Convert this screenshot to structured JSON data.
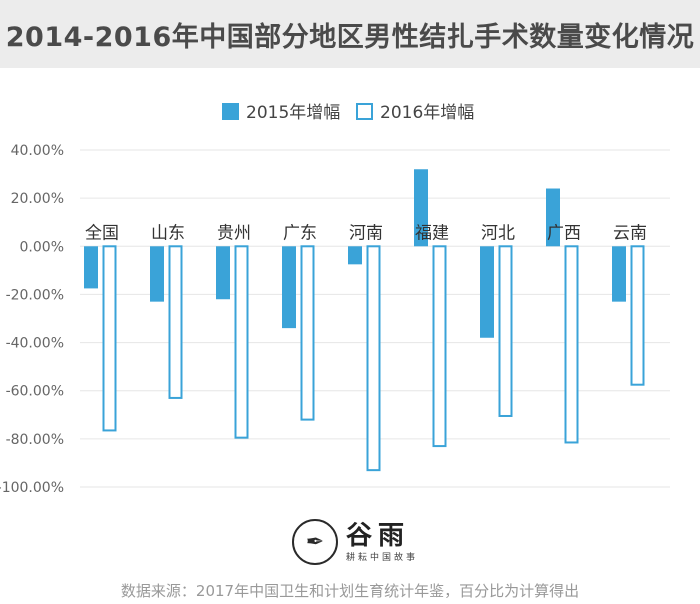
{
  "header": {
    "title": "2014-2016年中国部分地区男性结扎手术数量变化情况"
  },
  "logo": {
    "name": "谷雨",
    "tagline": "耕耘中国故事"
  },
  "footer": {
    "source": "数据来源：2017年中国卫生和计划生育统计年鉴，百分比为计算得出"
  },
  "chart_data": {
    "type": "bar",
    "categories": [
      "全国",
      "山东",
      "贵州",
      "广东",
      "河南",
      "福建",
      "河北",
      "广西",
      "云南"
    ],
    "series": [
      {
        "name": "2015年增幅",
        "values": [
          -17.5,
          -23,
          -22,
          -34,
          -7.5,
          32,
          -38,
          24,
          -23
        ],
        "color": "#3aa3d8",
        "style": "filled"
      },
      {
        "name": "2016年增幅",
        "values": [
          -76.5,
          -63,
          -79.5,
          -72,
          -93,
          -83,
          -70.5,
          -81.5,
          -57.5
        ],
        "color": "#3aa3d8",
        "style": "outline"
      }
    ],
    "y_ticks": [
      "40.00%",
      "20.00%",
      "0.00%",
      "-20.00%",
      "-40.00%",
      "-60.00%",
      "-80.00%",
      "-100.00%"
    ],
    "y_tick_values": [
      40,
      20,
      0,
      -20,
      -40,
      -60,
      -80,
      -100
    ],
    "ylim": [
      -100,
      40
    ],
    "grid": true,
    "legend_position": "top-center"
  }
}
